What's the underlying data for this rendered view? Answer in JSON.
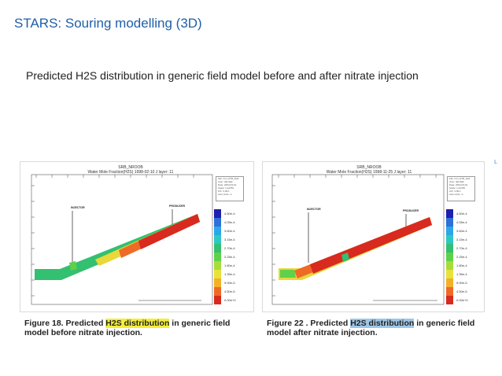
{
  "slide": {
    "title": "STARS: Souring modelling (3D)",
    "subtitle": "Predicted H2S distribution in generic field model before and after nitrate injection",
    "edge_mark": "L"
  },
  "figures": [
    {
      "panel_title_1": "SRB_NROOB",
      "panel_title_2": "Water Mole Fraction(H2S) 1998-02-10   J layer: 11",
      "info_lines": [
        "File: nrol_STR_field",
        "User: dambak",
        "Date: 2004-03-01",
        "Scale: 1:12766",
        "Z/X: 3.00:1",
        "Axis Units: m"
      ],
      "well_labels": [
        "INJECTOR",
        "PRODUCER"
      ],
      "legend_values": [
        "4.50e-4",
        "4.05e-4",
        "3.60e-4",
        "3.15e-4",
        "2.70e-4",
        "2.25e-4",
        "1.80e-4",
        "1.35e-4",
        "9.00e-5",
        "4.50e-5",
        "0.00e+0"
      ],
      "caption_prefix": "Figure 18. Predicted ",
      "caption_highlight": "H2S distribution",
      "caption_suffix": " in generic field model before nitrate injection."
    },
    {
      "panel_title_1": "SRB_NROOB",
      "panel_title_2": "Water Mole Fraction(H2S) 1998-11-25   J layer: 11",
      "info_lines": [
        "File: nrol_STR_field",
        "User: dambak",
        "Date: 2004-03-01",
        "Scale: 1:12766",
        "Z/X: 3.00:1",
        "Axis Units: m"
      ],
      "well_labels": [
        "INJECTOR",
        "PRODUCER"
      ],
      "legend_values": [
        "4.50e-4",
        "4.05e-4",
        "3.60e-4",
        "3.15e-4",
        "2.70e-4",
        "2.25e-4",
        "1.80e-4",
        "1.35e-4",
        "9.00e-5",
        "4.50e-5",
        "0.00e+0"
      ],
      "caption_prefix": "Figure 22 . Predicted ",
      "caption_highlight": "H2S distribution",
      "caption_suffix": " in generic field model after nitrate injection."
    }
  ],
  "legend_colors": [
    "#1f1fb0",
    "#2e6fd8",
    "#2aa7e8",
    "#2fc7c2",
    "#33c070",
    "#5fd04a",
    "#a8dc3a",
    "#e8e23a",
    "#f4b02a",
    "#ee6a26",
    "#d82a1e"
  ]
}
